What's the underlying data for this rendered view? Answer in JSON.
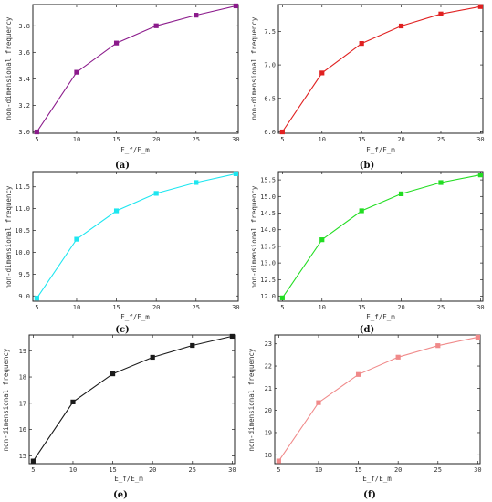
{
  "chart_data": [
    {
      "type": "line",
      "caption": "(a)",
      "xlabel": "E_f/E_m",
      "ylabel": "non-dimensional frequency",
      "color": "#8b1a8b",
      "x": [
        5,
        10,
        15,
        20,
        25,
        30
      ],
      "y": [
        3.0,
        3.45,
        3.67,
        3.8,
        3.88,
        3.95
      ],
      "xlim": [
        4.5,
        30.3
      ],
      "ylim": [
        2.99,
        3.96
      ],
      "xticks": [
        5,
        10,
        15,
        20,
        25,
        30
      ],
      "yticks": [
        3.0,
        3.2,
        3.4,
        3.6,
        3.8
      ],
      "ytick_labels": [
        "3.0",
        "3.2",
        "3.4",
        "3.6",
        "3.8"
      ],
      "grid": false
    },
    {
      "type": "line",
      "caption": "(b)",
      "xlabel": "E_f/E_m",
      "ylabel": "non-dimensional frequency",
      "color": "#e02020",
      "x": [
        5,
        10,
        15,
        20,
        25,
        30
      ],
      "y": [
        6.0,
        6.88,
        7.32,
        7.58,
        7.76,
        7.87
      ],
      "xlim": [
        4.5,
        30.3
      ],
      "ylim": [
        5.98,
        7.9
      ],
      "xticks": [
        5,
        10,
        15,
        20,
        25,
        30
      ],
      "yticks": [
        6.0,
        6.5,
        7.0,
        7.5
      ],
      "ytick_labels": [
        "6.0",
        "6.5",
        "7.0",
        "7.5"
      ],
      "grid": false
    },
    {
      "type": "line",
      "caption": "(c)",
      "xlabel": "E_f/E_m",
      "ylabel": "non-dimensional frequency",
      "color": "#1ee6f0",
      "x": [
        5,
        10,
        15,
        20,
        25,
        30
      ],
      "y": [
        8.95,
        10.3,
        10.95,
        11.35,
        11.6,
        11.8
      ],
      "xlim": [
        4.5,
        30.3
      ],
      "ylim": [
        8.88,
        11.85
      ],
      "xticks": [
        5,
        10,
        15,
        20,
        25,
        30
      ],
      "yticks": [
        9.0,
        9.5,
        10.0,
        10.5,
        11.0,
        11.5
      ],
      "ytick_labels": [
        "9.0",
        "9.5",
        "10.0",
        "10.5",
        "11.0",
        "11.5"
      ],
      "grid": false
    },
    {
      "type": "line",
      "caption": "(d)",
      "xlabel": "E_f/E_m",
      "ylabel": "non-dimensional frequency",
      "color": "#22dd22",
      "x": [
        5,
        10,
        15,
        20,
        25,
        30
      ],
      "y": [
        11.95,
        13.7,
        14.57,
        15.08,
        15.42,
        15.65
      ],
      "xlim": [
        4.5,
        30.3
      ],
      "ylim": [
        11.85,
        15.75
      ],
      "xticks": [
        5,
        10,
        15,
        20,
        25,
        30
      ],
      "yticks": [
        12.0,
        12.5,
        13.0,
        13.5,
        14.0,
        14.5,
        15.0,
        15.5
      ],
      "ytick_labels": [
        "12.0",
        "12.5",
        "13.0",
        "13.5",
        "14.0",
        "14.5",
        "15.0",
        "15.5"
      ],
      "grid": false
    },
    {
      "type": "line",
      "caption": "(e)",
      "xlabel": "E_f/E_m",
      "ylabel": "non-dimensional frequency",
      "color": "#1a1a1a",
      "x": [
        5,
        10,
        15,
        20,
        25,
        30
      ],
      "y": [
        14.8,
        17.05,
        18.12,
        18.75,
        19.2,
        19.55
      ],
      "xlim": [
        4.5,
        30.3
      ],
      "ylim": [
        14.7,
        19.6
      ],
      "xticks": [
        5,
        10,
        15,
        20,
        25,
        30
      ],
      "yticks": [
        15,
        16,
        17,
        18,
        19
      ],
      "ytick_labels": [
        "15",
        "16",
        "17",
        "18",
        "19"
      ],
      "grid": false
    },
    {
      "type": "line",
      "caption": "(f)",
      "xlabel": "E_f/E_m",
      "ylabel": "non-dimensional frequency",
      "color": "#f08a8a",
      "x": [
        5,
        10,
        15,
        20,
        25,
        30
      ],
      "y": [
        17.72,
        20.35,
        21.62,
        22.4,
        22.92,
        23.3
      ],
      "xlim": [
        4.5,
        30.3
      ],
      "ylim": [
        17.6,
        23.4
      ],
      "xticks": [
        5,
        10,
        15,
        20,
        25,
        30
      ],
      "yticks": [
        18,
        19,
        20,
        21,
        22,
        23
      ],
      "ytick_labels": [
        "18",
        "19",
        "20",
        "21",
        "22",
        "23"
      ],
      "grid": false
    }
  ]
}
